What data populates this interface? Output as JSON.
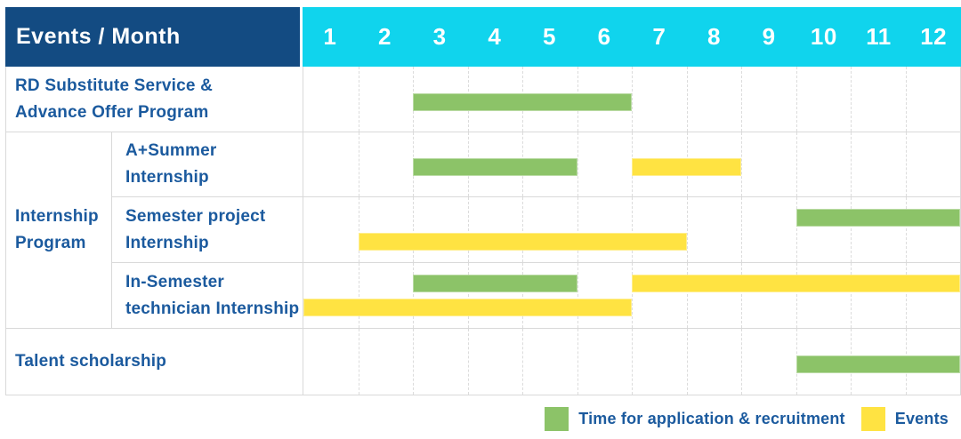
{
  "header": {
    "title": "Events / Month"
  },
  "months": [
    "1",
    "2",
    "3",
    "4",
    "5",
    "6",
    "7",
    "8",
    "9",
    "10",
    "11",
    "12"
  ],
  "colors": {
    "header_bg": "#134b82",
    "months_bg": "#10d4ed",
    "text_blue": "#1b5a9e",
    "bar_green": "#8cc368",
    "bar_yellow": "#ffe342",
    "grid_line": "#dcdcdc"
  },
  "group": {
    "label_lines": [
      "Internship",
      "Program"
    ]
  },
  "rows": [
    {
      "name": "rd-substitute-service-advance-offer-program",
      "label_lines": [
        "RD Substitute Service &",
        "Advance Offer Program"
      ],
      "bars": [
        {
          "color": "green",
          "start": 3,
          "end": 6,
          "line": "single"
        }
      ]
    },
    {
      "name": "a-plus-summer-internship",
      "label_lines": [
        "A+Summer",
        "Internship"
      ],
      "bars": [
        {
          "color": "green",
          "start": 3,
          "end": 5,
          "line": "single"
        },
        {
          "color": "yellow",
          "start": 7,
          "end": 8,
          "line": "single"
        }
      ]
    },
    {
      "name": "semester-project-internship",
      "label_lines": [
        "Semester project",
        "Internship"
      ],
      "bars": [
        {
          "color": "green",
          "start": 10,
          "end": 12,
          "line": "top"
        },
        {
          "color": "yellow",
          "start": 2,
          "end": 7,
          "line": "bottom"
        }
      ]
    },
    {
      "name": "in-semester-technician-internship",
      "label_lines": [
        "In-Semester",
        "technician Internship"
      ],
      "bars": [
        {
          "color": "green",
          "start": 3,
          "end": 5,
          "line": "top"
        },
        {
          "color": "yellow",
          "start": 7,
          "end": 12,
          "line": "top"
        },
        {
          "color": "yellow",
          "start": 1,
          "end": 6,
          "line": "bottom"
        }
      ]
    },
    {
      "name": "talent-scholarship",
      "label_lines": [
        "Talent scholarship"
      ],
      "bars": [
        {
          "color": "green",
          "start": 10,
          "end": 12,
          "line": "single"
        }
      ]
    }
  ],
  "legend": {
    "items": [
      {
        "color": "green",
        "label": "Time for application & recruitment"
      },
      {
        "color": "yellow",
        "label": "Events"
      }
    ]
  },
  "chart_data": {
    "type": "gantt",
    "title": "Events / Month",
    "x": {
      "label": "Month",
      "ticks": [
        1,
        2,
        3,
        4,
        5,
        6,
        7,
        8,
        9,
        10,
        11,
        12
      ],
      "range": [
        1,
        12
      ]
    },
    "legend_position": "bottom-right",
    "grid": "dashed-vertical",
    "legend": {
      "green": "Time for application & recruitment",
      "yellow": "Events"
    },
    "tasks": [
      {
        "task": "RD Substitute Service & Advance Offer Program",
        "group": null,
        "spans": [
          {
            "kind": "application_recruitment",
            "months": [
              3,
              6
            ]
          }
        ]
      },
      {
        "task": "A+Summer Internship",
        "group": "Internship Program",
        "spans": [
          {
            "kind": "application_recruitment",
            "months": [
              3,
              5
            ]
          },
          {
            "kind": "event",
            "months": [
              7,
              8
            ]
          }
        ]
      },
      {
        "task": "Semester project Internship",
        "group": "Internship Program",
        "spans": [
          {
            "kind": "application_recruitment",
            "months": [
              10,
              12
            ]
          },
          {
            "kind": "event",
            "months": [
              2,
              7
            ]
          }
        ]
      },
      {
        "task": "In-Semester technician Internship",
        "group": "Internship Program",
        "spans": [
          {
            "kind": "application_recruitment",
            "months": [
              3,
              5
            ]
          },
          {
            "kind": "event",
            "months": [
              7,
              12
            ]
          },
          {
            "kind": "event",
            "months": [
              1,
              6
            ]
          }
        ]
      },
      {
        "task": "Talent scholarship",
        "group": null,
        "spans": [
          {
            "kind": "application_recruitment",
            "months": [
              10,
              12
            ]
          }
        ]
      }
    ]
  }
}
